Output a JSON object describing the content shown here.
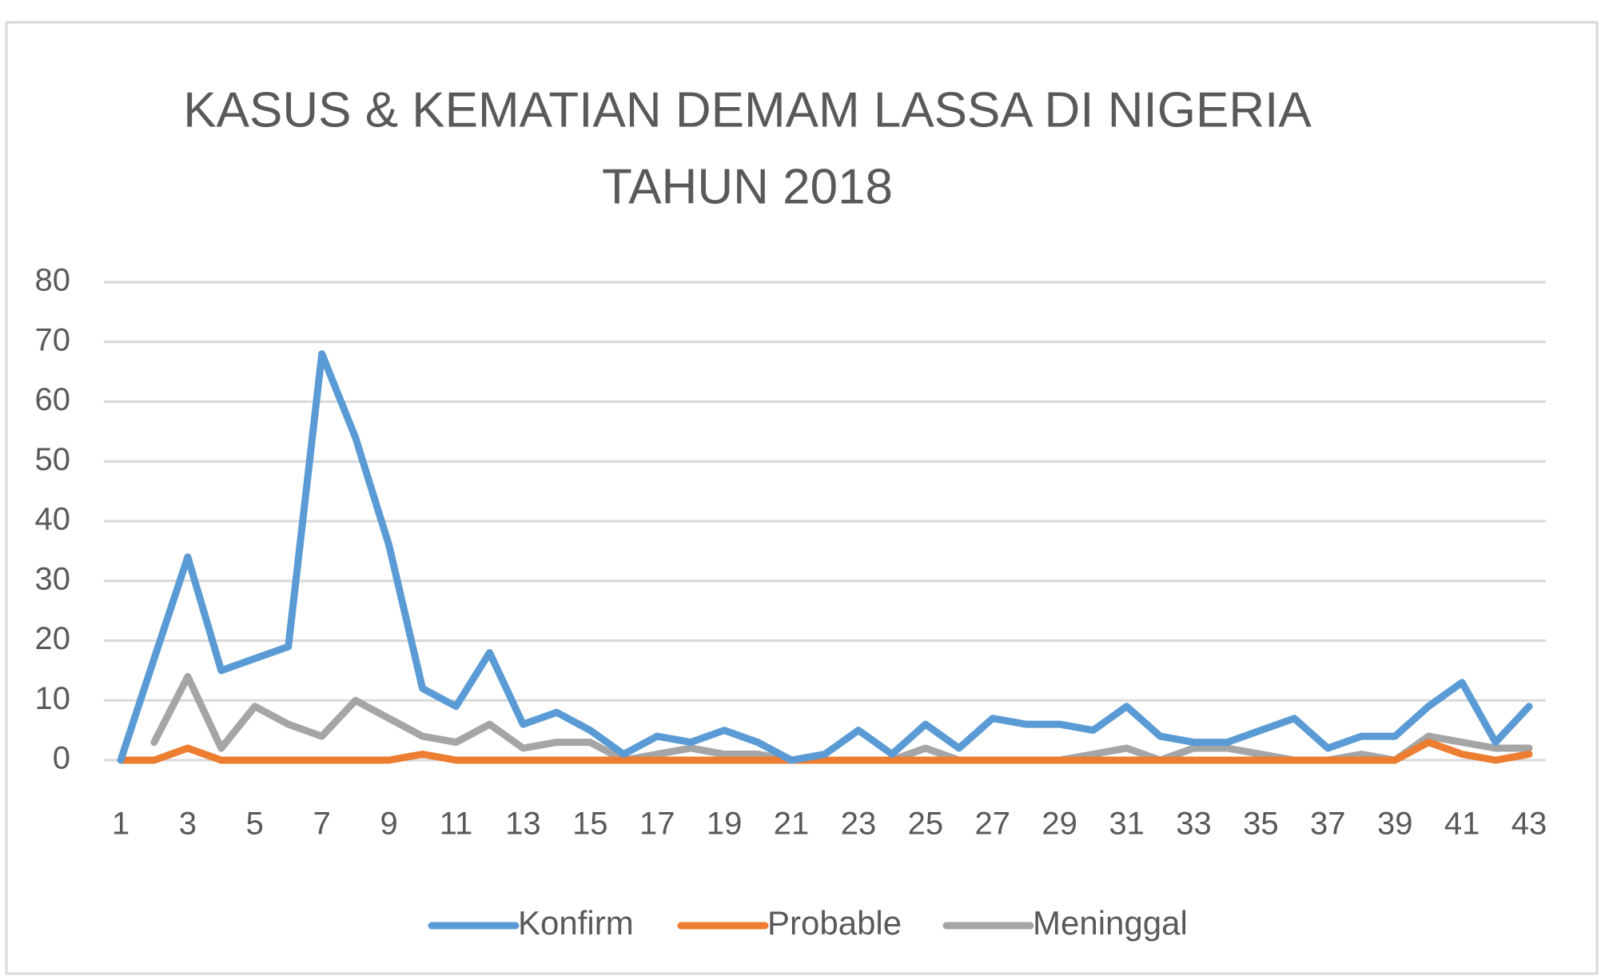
{
  "chart_data": {
    "type": "line",
    "title": [
      "KASUS & KEMATIAN DEMAM LASSA DI NIGERIA",
      "TAHUN 2018"
    ],
    "categories": [
      "1",
      null,
      "3",
      null,
      "5",
      null,
      "7",
      null,
      "9",
      null,
      "11",
      null,
      "13",
      null,
      "15",
      null,
      "17",
      null,
      "19",
      null,
      "21",
      null,
      "23",
      null,
      "25",
      null,
      "27",
      null,
      "29",
      null,
      "31",
      null,
      "33",
      null,
      "35",
      null,
      "37",
      null,
      "39",
      null,
      "41",
      null,
      "43"
    ],
    "series": [
      {
        "name": "Konfirm",
        "color": "#5b9bd5",
        "values": [
          0,
          17,
          34,
          15,
          17,
          19,
          68,
          54,
          36,
          12,
          9,
          18,
          6,
          8,
          5,
          1,
          4,
          3,
          5,
          3,
          0,
          1,
          5,
          1,
          6,
          2,
          7,
          6,
          6,
          5,
          9,
          4,
          3,
          3,
          5,
          7,
          2,
          4,
          4,
          9,
          13,
          3,
          9
        ]
      },
      {
        "name": "Probable",
        "color": "#ed7d31",
        "values": [
          0,
          0,
          2,
          0,
          0,
          0,
          0,
          0,
          0,
          1,
          0,
          0,
          0,
          0,
          0,
          0,
          0,
          0,
          0,
          0,
          0,
          0,
          0,
          0,
          0,
          0,
          0,
          0,
          0,
          0,
          0,
          0,
          0,
          0,
          0,
          0,
          0,
          0,
          0,
          3,
          1,
          0,
          1
        ]
      },
      {
        "name": "Meninggal",
        "color": "#a5a5a5",
        "values": [
          null,
          3,
          14,
          2,
          9,
          6,
          4,
          10,
          7,
          4,
          3,
          6,
          2,
          3,
          3,
          0,
          1,
          2,
          1,
          1,
          0,
          0,
          0,
          0,
          2,
          0,
          0,
          0,
          0,
          1,
          2,
          0,
          2,
          2,
          1,
          0,
          0,
          1,
          0,
          4,
          3,
          2,
          2
        ]
      }
    ],
    "ylim": [
      0,
      80
    ],
    "yticks": [
      0,
      10,
      20,
      30,
      40,
      50,
      60,
      70,
      80
    ],
    "grid": true,
    "legend": "bottom"
  }
}
